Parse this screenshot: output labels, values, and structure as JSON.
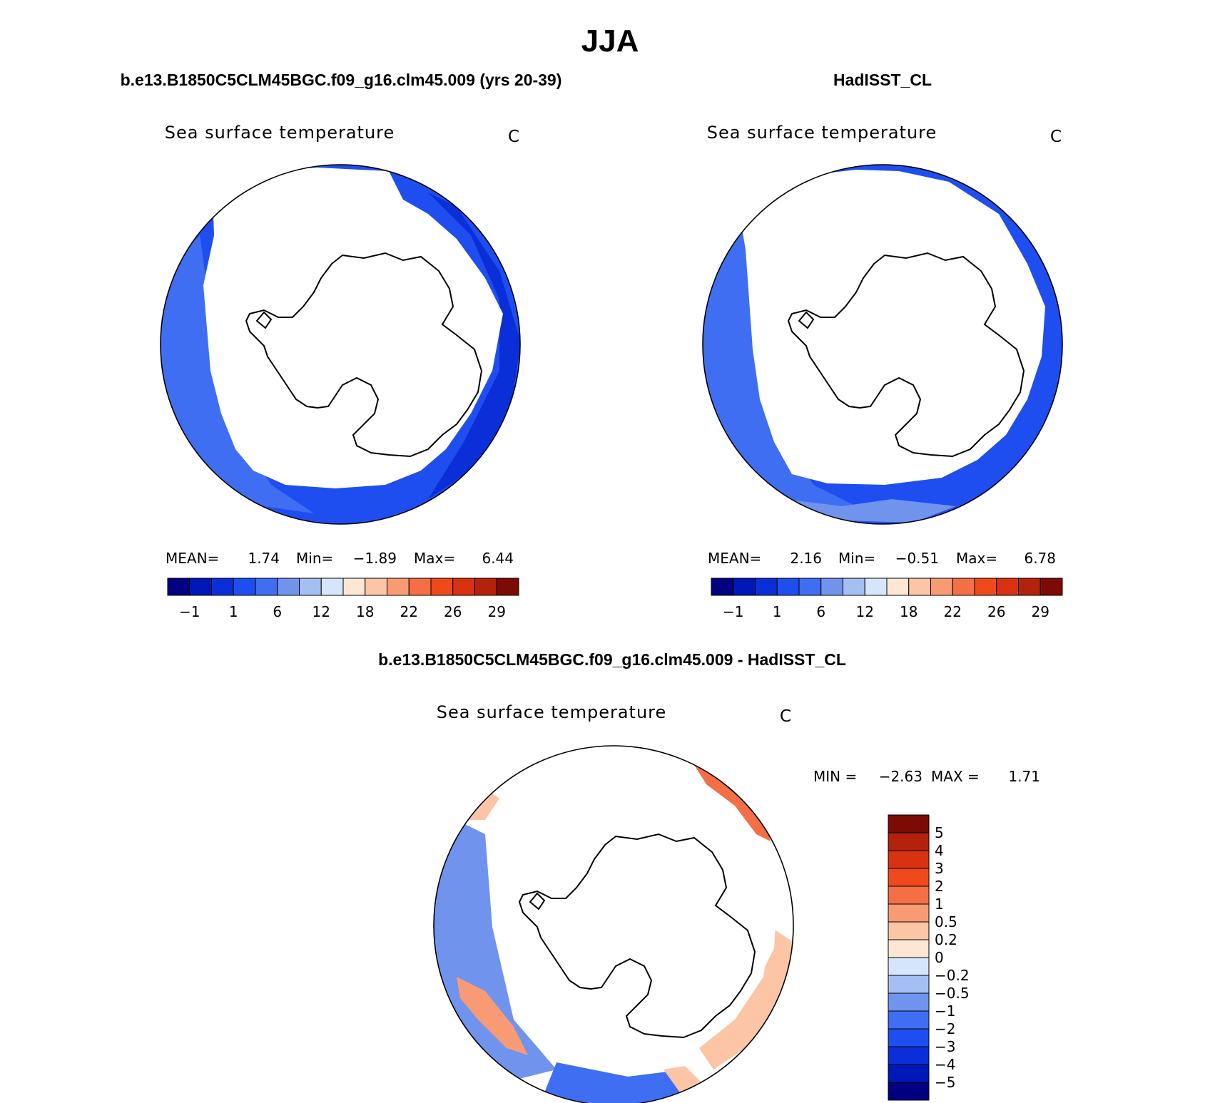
{
  "figure": {
    "title": "JJA"
  },
  "panels": [
    {
      "heading": "b.e13.B1850C5CLM45BGC.f09_g16.clm45.009 (yrs 20-39)",
      "variable": "Sea surface temperature",
      "units": "C",
      "stats": {
        "mean_label": "MEAN=",
        "mean": "1.74",
        "min_label": "Min=",
        "min": "−1.89",
        "max_label": "Max=",
        "max": "6.44"
      },
      "colorbar": {
        "orientation": "horizontal",
        "tick_labels": [
          "−1",
          "1",
          "6",
          "12",
          "18",
          "22",
          "26",
          "29"
        ],
        "colors": [
          "#000080",
          "#0018b8",
          "#0a2fd9",
          "#1f4ef0",
          "#3f6ef2",
          "#7093ee",
          "#a4bff3",
          "#d6e6fa",
          "#fde6d3",
          "#fbc5a6",
          "#f89b75",
          "#f46e46",
          "#f04a1c",
          "#d93211",
          "#b5220c",
          "#7d0b05"
        ]
      },
      "regions": [
        {
          "kind": "ocean-shade",
          "color": "#1f4ef0"
        },
        {
          "kind": "ocean-shade",
          "color": "#3f6ef2"
        },
        {
          "kind": "ocean-shade",
          "color": "#0a2fd9"
        },
        {
          "kind": "sea-ice-mask",
          "color": "#ffffff"
        }
      ]
    },
    {
      "heading": "HadISST_CL",
      "variable": "Sea surface temperature",
      "units": "C",
      "stats": {
        "mean_label": "MEAN=",
        "mean": "2.16",
        "min_label": "Min=",
        "min": "−0.51",
        "max_label": "Max=",
        "max": "6.78"
      },
      "colorbar": {
        "orientation": "horizontal",
        "tick_labels": [
          "−1",
          "1",
          "6",
          "12",
          "18",
          "22",
          "26",
          "29"
        ],
        "colors": [
          "#000080",
          "#0018b8",
          "#0a2fd9",
          "#1f4ef0",
          "#3f6ef2",
          "#7093ee",
          "#a4bff3",
          "#d6e6fa",
          "#fde6d3",
          "#fbc5a6",
          "#f89b75",
          "#f46e46",
          "#f04a1c",
          "#d93211",
          "#b5220c",
          "#7d0b05"
        ]
      },
      "regions": [
        {
          "kind": "ocean-shade",
          "color": "#1f4ef0"
        },
        {
          "kind": "ocean-shade",
          "color": "#3f6ef2"
        },
        {
          "kind": "ocean-shade",
          "color": "#7093ee"
        },
        {
          "kind": "sea-ice-mask",
          "color": "#ffffff"
        }
      ]
    },
    {
      "heading": "b.e13.B1850C5CLM45BGC.f09_g16.clm45.009 - HadISST_CL",
      "variable": "Sea surface temperature",
      "units": "C",
      "stats": {
        "min_label": "MIN =",
        "min": "−2.63",
        "max_label": "MAX =",
        "max": "1.71"
      },
      "colorbar": {
        "orientation": "vertical",
        "tick_labels": [
          "5",
          "4",
          "3",
          "2",
          "1",
          "0.5",
          "0.2",
          "0",
          "−0.2",
          "−0.5",
          "−1",
          "−2",
          "−3",
          "−4",
          "−5"
        ],
        "colors": [
          "#7d0b05",
          "#b5220c",
          "#d93211",
          "#f04a1c",
          "#f46e46",
          "#f89b75",
          "#fbc5a6",
          "#fde6d3",
          "#d6e6fa",
          "#a4bff3",
          "#7093ee",
          "#3f6ef2",
          "#1f4ef0",
          "#0a2fd9",
          "#0018b8",
          "#000080"
        ]
      },
      "regions": [
        {
          "kind": "anomaly-shade",
          "color": "#7093ee"
        },
        {
          "kind": "anomaly-shade",
          "color": "#3f6ef2"
        },
        {
          "kind": "anomaly-shade",
          "color": "#f89b75"
        },
        {
          "kind": "anomaly-shade",
          "color": "#f46e46"
        },
        {
          "kind": "anomaly-shade",
          "color": "#fbc5a6"
        },
        {
          "kind": "sea-ice-mask",
          "color": "#ffffff"
        }
      ]
    }
  ]
}
